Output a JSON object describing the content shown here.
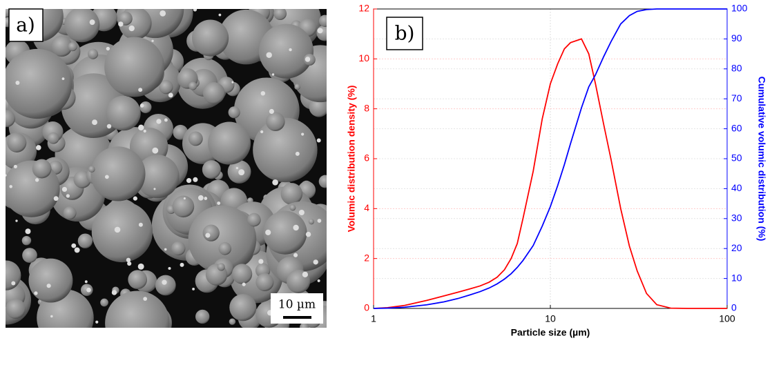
{
  "panel_labels": [
    "a)",
    "b)"
  ],
  "scale_bar": "10 µm",
  "chart_data": {
    "type": "line",
    "xlabel": "Particle size (µm)",
    "ylabel": "Volumic distribution density (%)",
    "y2label": "Cumulative volumic distribution (%)",
    "xscale": "log",
    "grid": true,
    "x": [
      1,
      1.2,
      1.5,
      2,
      2.5,
      3,
      3.5,
      4,
      4.5,
      5,
      5.5,
      6,
      6.5,
      7,
      8,
      9,
      10,
      11,
      12,
      13,
      15,
      16.5,
      18,
      20,
      22,
      25,
      28,
      31,
      35,
      40,
      48,
      60,
      100
    ],
    "series": [
      {
        "name": "Volumic distribution density",
        "color": "#ff0000",
        "axis": "y",
        "values": [
          0,
          0.03,
          0.12,
          0.32,
          0.5,
          0.65,
          0.78,
          0.9,
          1.05,
          1.25,
          1.55,
          2.0,
          2.6,
          3.6,
          5.5,
          7.6,
          9.0,
          9.8,
          10.4,
          10.65,
          10.8,
          10.2,
          9.0,
          7.4,
          6.0,
          4.0,
          2.5,
          1.5,
          0.6,
          0.15,
          0.01,
          0,
          0
        ]
      },
      {
        "name": "Cumulative volumic distribution",
        "color": "#0000ff",
        "axis": "y2",
        "values": [
          0,
          0.1,
          0.4,
          1.2,
          2.2,
          3.3,
          4.5,
          5.6,
          6.8,
          8.2,
          9.8,
          11.6,
          13.7,
          16,
          21,
          27.5,
          34,
          41,
          48,
          55,
          67,
          74,
          78,
          84,
          89,
          95,
          97.8,
          99.2,
          99.8,
          100,
          100,
          100,
          100
        ]
      }
    ],
    "xlim": [
      1,
      100
    ],
    "xticks": [
      1,
      10,
      100
    ],
    "ylim": [
      0,
      12
    ],
    "yticks": [
      0,
      2,
      4,
      6,
      8,
      10,
      12
    ],
    "y2lim": [
      0,
      100
    ],
    "y2ticks": [
      0,
      10,
      20,
      30,
      40,
      50,
      60,
      70,
      80,
      90,
      100
    ]
  }
}
